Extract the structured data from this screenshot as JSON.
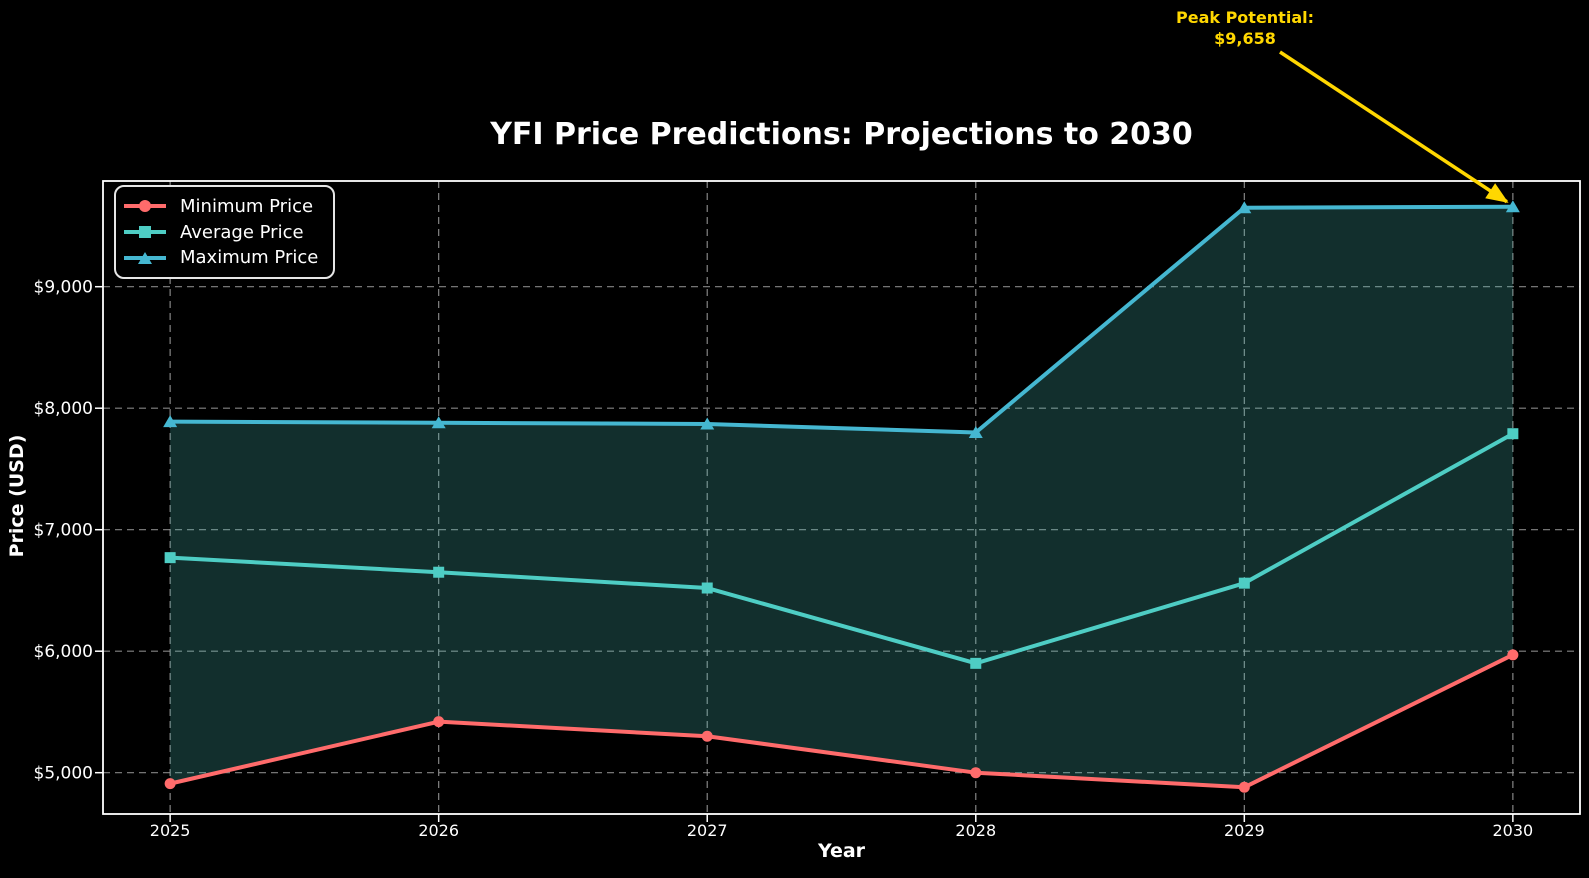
{
  "title": "YFI Price Predictions: Projections to 2030",
  "axis": {
    "x": "Year",
    "y": "Price (USD)"
  },
  "annotation": {
    "line1": "Peak Potential:",
    "line2": "$9,658"
  },
  "legend": {
    "position": "upper left",
    "items": [
      {
        "label": "Minimum Price",
        "marker": "circle",
        "color": "#FF6B6B"
      },
      {
        "label": "Average Price",
        "marker": "square",
        "color": "#4ECDC4"
      },
      {
        "label": "Maximum Price",
        "marker": "triangle",
        "color": "#45B7D1"
      }
    ]
  },
  "colors": {
    "background": "#000000",
    "text": "#FFFFFF",
    "grid": "#9c9c9c",
    "spine": "#FFFFFF",
    "annotation_gold": "#FFD700",
    "band_fill": "rgba(78,205,196,0.23)"
  },
  "chart_data": {
    "type": "line",
    "title": "YFI Price Predictions: Projections to 2030",
    "xlabel": "Year",
    "ylabel": "Price (USD)",
    "x": [
      2025,
      2026,
      2027,
      2028,
      2029,
      2030
    ],
    "series": [
      {
        "name": "Minimum Price",
        "color": "#FF6B6B",
        "marker": "circle",
        "values": [
          4910,
          5420,
          5300,
          5000,
          4880,
          5970
        ]
      },
      {
        "name": "Average Price",
        "color": "#4ECDC4",
        "marker": "square",
        "values": [
          6770,
          6650,
          6520,
          5900,
          6560,
          7790
        ]
      },
      {
        "name": "Maximum Price",
        "color": "#45B7D1",
        "marker": "triangle",
        "values": [
          7890,
          7880,
          7870,
          7800,
          9650,
          9658
        ]
      }
    ],
    "fill_between": {
      "lower": "Minimum Price",
      "upper": "Maximum Price",
      "color": "rgba(78,205,196,0.23)"
    },
    "xlim": [
      2024.75,
      2030.25
    ],
    "ylim": [
      4660,
      9870
    ],
    "x_ticks": [
      2025,
      2026,
      2027,
      2028,
      2029,
      2030
    ],
    "x_tick_labels": [
      "2025",
      "2026",
      "2027",
      "2028",
      "2029",
      "2030"
    ],
    "y_ticks": [
      5000,
      6000,
      7000,
      8000,
      9000
    ],
    "y_tick_labels": [
      "$5,000",
      "$6,000",
      "$7,000",
      "$8,000",
      "$9,000"
    ],
    "grid": {
      "on": true,
      "style": "dashed"
    },
    "legend_position": "upper left",
    "peak_annotation": {
      "text": "Peak Potential:\n$9,658",
      "x": 2030,
      "y": 9658
    }
  }
}
